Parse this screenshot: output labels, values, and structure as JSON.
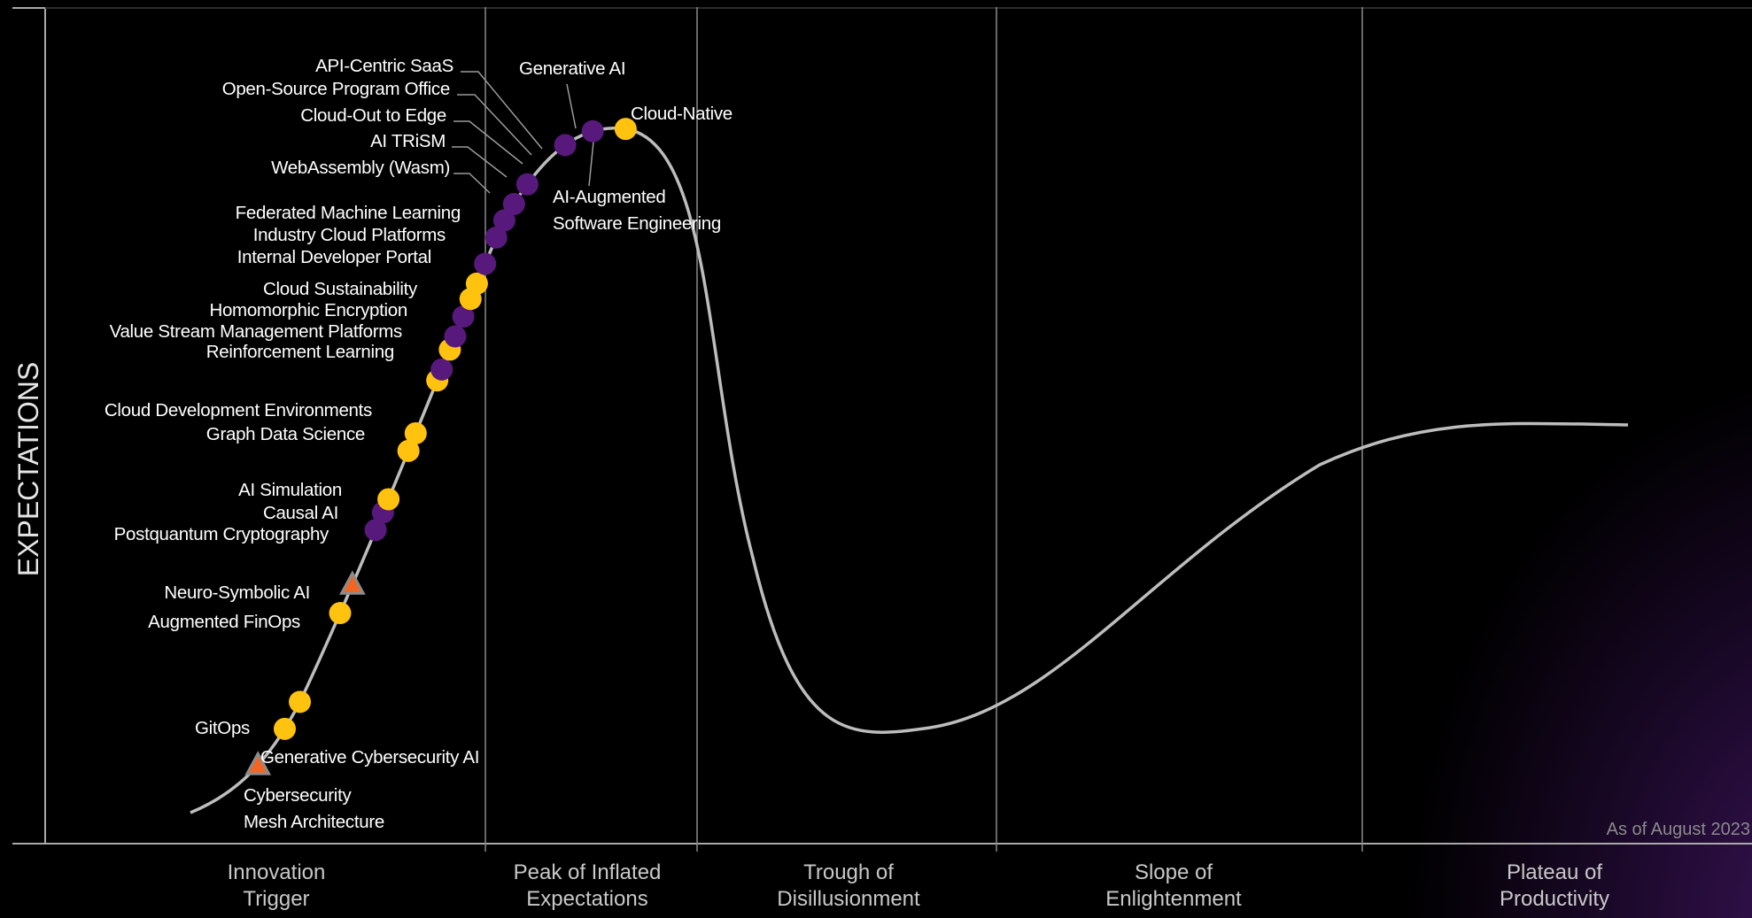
{
  "chart_data": {
    "type": "scatter",
    "ylabel": "EXPECTATIONS",
    "note": "As of August 2023",
    "phases": [
      {
        "lines": [
          "Innovation",
          "Trigger"
        ]
      },
      {
        "lines": [
          "Peak of Inflated",
          "Expectations"
        ]
      },
      {
        "lines": [
          "Trough of",
          "Disillusionment"
        ]
      },
      {
        "lines": [
          "Slope of",
          "Enlightenment"
        ]
      },
      {
        "lines": [
          "Plateau of",
          "Productivity"
        ]
      }
    ],
    "colors": {
      "background": "#000000",
      "curve": "#bdbdbd",
      "axis": "#a9a9a9",
      "divider": "#8a8a8a",
      "label": "#ffffff",
      "phase_label": "#c8c8c8",
      "yellow_marker": "#ffc20e",
      "purple_marker": "#58197c",
      "triangle_marker": "#f26522",
      "triangle_outline": "#8c8c8c"
    },
    "technologies": [
      {
        "name": "Cybersecurity Mesh Architecture",
        "lines": [
          "Cybersecurity",
          "Mesh Architecture"
        ],
        "marker": "triangle",
        "t": 0.035
      },
      {
        "name": "Generative Cybersecurity AI",
        "marker": "yellow",
        "t": 0.054
      },
      {
        "name": "GitOps",
        "marker": "yellow",
        "t": 0.067
      },
      {
        "name": "Augmented FinOps",
        "marker": "yellow",
        "t": 0.108
      },
      {
        "name": "Neuro-Symbolic AI",
        "marker": "triangle",
        "t": 0.121
      },
      {
        "name": "Postquantum Cryptography",
        "marker": "purple",
        "t": 0.146
      },
      {
        "name": "Causal AI",
        "marker": "purple",
        "t": 0.154
      },
      {
        "name": "AI Simulation",
        "marker": "yellow",
        "t": 0.16
      },
      {
        "name": "Graph Data Science",
        "marker": "yellow",
        "t": 0.182
      },
      {
        "name": "Cloud Development Environments",
        "marker": "yellow",
        "t": 0.19
      },
      {
        "name": "Reinforcement Learning",
        "marker": "yellow",
        "t": 0.214
      },
      {
        "name": "Value Stream Management Platforms",
        "marker": "purple",
        "t": 0.219
      },
      {
        "name": "Homomorphic Encryption",
        "marker": "yellow",
        "t": 0.228
      },
      {
        "name": "Cloud Sustainability",
        "marker": "purple",
        "t": 0.234
      },
      {
        "name": "Internal Developer Portal",
        "marker": "purple",
        "t": 0.243
      },
      {
        "name": "Industry Cloud Platforms",
        "marker": "yellow",
        "t": 0.251
      },
      {
        "name": "Federated Machine Learning",
        "marker": "yellow",
        "t": 0.258
      },
      {
        "name": "WebAssembly (Wasm)",
        "marker": "purple",
        "t": 0.267
      },
      {
        "name": "AI TRiSM",
        "marker": "purple",
        "t": 0.279
      },
      {
        "name": "Cloud-Out to Edge",
        "marker": "purple",
        "t": 0.287
      },
      {
        "name": "Open-Source Program Office",
        "marker": "purple",
        "t": 0.295
      },
      {
        "name": "API-Centric SaaS",
        "marker": "purple",
        "t": 0.305
      },
      {
        "name": "Generative AI",
        "marker": "purple",
        "t": 0.328
      },
      {
        "name": "AI-Augmented Software Engineering",
        "lines": [
          "AI-Augmented",
          "Software Engineering"
        ],
        "marker": "purple",
        "t": 0.341
      },
      {
        "name": "Cloud-Native",
        "marker": "yellow",
        "t": 0.355
      }
    ]
  }
}
